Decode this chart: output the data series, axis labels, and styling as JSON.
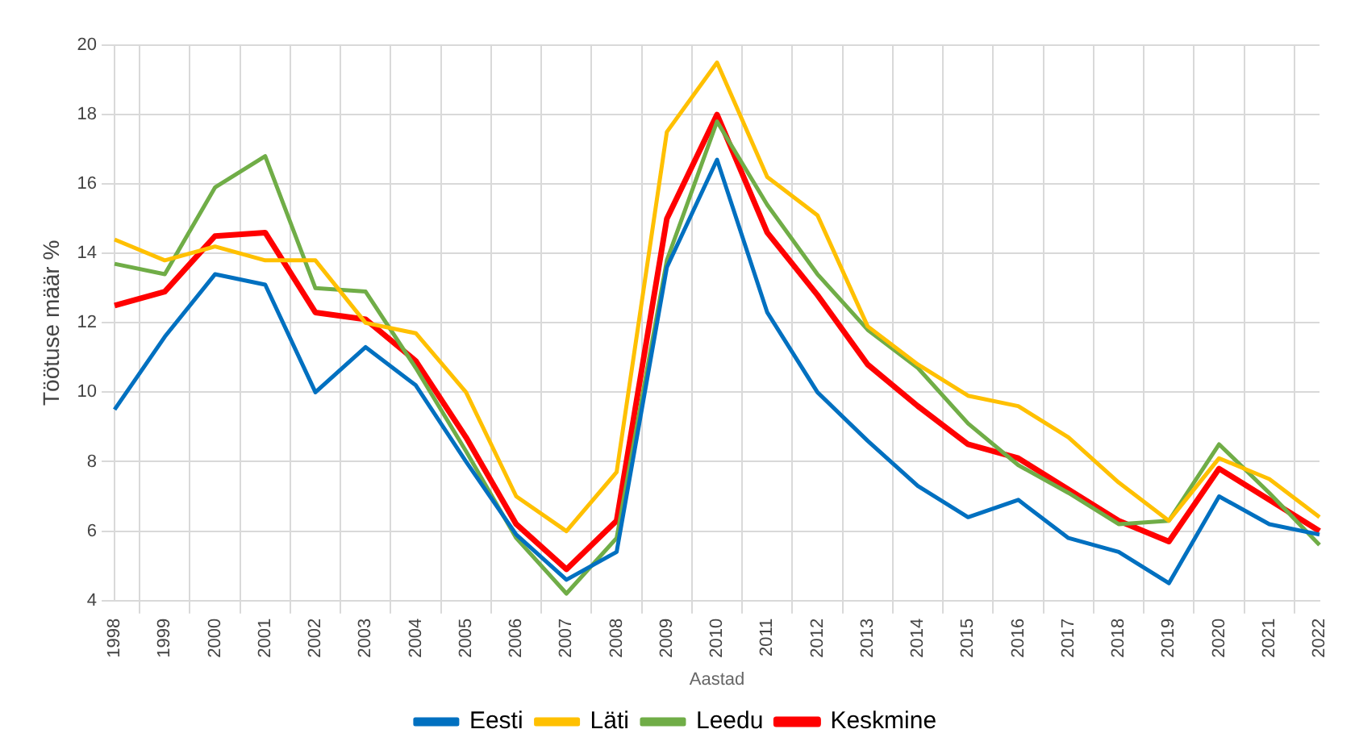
{
  "chart_data": {
    "type": "line",
    "xlabel": "Aastad",
    "ylabel": "Töötuse määr %",
    "categories": [
      "1998",
      "1999",
      "2000",
      "2001",
      "2002",
      "2003",
      "2004",
      "2005",
      "2006",
      "2007",
      "2008",
      "2009",
      "2010",
      "2011",
      "2012",
      "2013",
      "2014",
      "2015",
      "2016",
      "2017",
      "2018",
      "2019",
      "2020",
      "2021",
      "2022"
    ],
    "series": [
      {
        "name": "Eesti",
        "color": "#0070c0",
        "values": [
          9.5,
          11.6,
          13.4,
          13.1,
          10.0,
          11.3,
          10.2,
          8.0,
          5.9,
          4.6,
          5.4,
          13.6,
          16.7,
          12.3,
          10.0,
          8.6,
          7.3,
          6.4,
          6.9,
          5.8,
          5.4,
          4.5,
          7.0,
          6.2,
          5.9
        ]
      },
      {
        "name": "Läti",
        "color": "#ffc000",
        "values": [
          14.4,
          13.8,
          14.2,
          13.8,
          13.8,
          12.0,
          11.7,
          10.0,
          7.0,
          6.0,
          7.7,
          17.5,
          19.5,
          16.2,
          15.1,
          11.9,
          10.8,
          9.9,
          9.6,
          8.7,
          7.4,
          6.3,
          8.1,
          7.5,
          6.4
        ]
      },
      {
        "name": "Leedu",
        "color": "#70ad47",
        "values": [
          13.7,
          13.4,
          15.9,
          16.8,
          13.0,
          12.9,
          10.7,
          8.3,
          5.8,
          4.2,
          5.8,
          13.8,
          17.8,
          15.4,
          13.4,
          11.8,
          10.7,
          9.1,
          7.9,
          7.1,
          6.2,
          6.3,
          8.5,
          7.1,
          5.6
        ]
      },
      {
        "name": "Keskmine",
        "color": "#ff0000",
        "values": [
          12.5,
          12.9,
          14.5,
          14.6,
          12.3,
          12.1,
          10.9,
          8.7,
          6.2,
          4.9,
          6.3,
          15.0,
          18.0,
          14.6,
          12.8,
          10.8,
          9.6,
          8.5,
          8.1,
          7.2,
          6.3,
          5.7,
          7.8,
          6.9,
          6.0
        ]
      }
    ],
    "ylim": [
      4,
      20
    ],
    "yticks": [
      4,
      6,
      8,
      10,
      12,
      14,
      16,
      18,
      20
    ],
    "grid": true,
    "legend": "bottom",
    "marker": "none",
    "line_style": "solid"
  }
}
